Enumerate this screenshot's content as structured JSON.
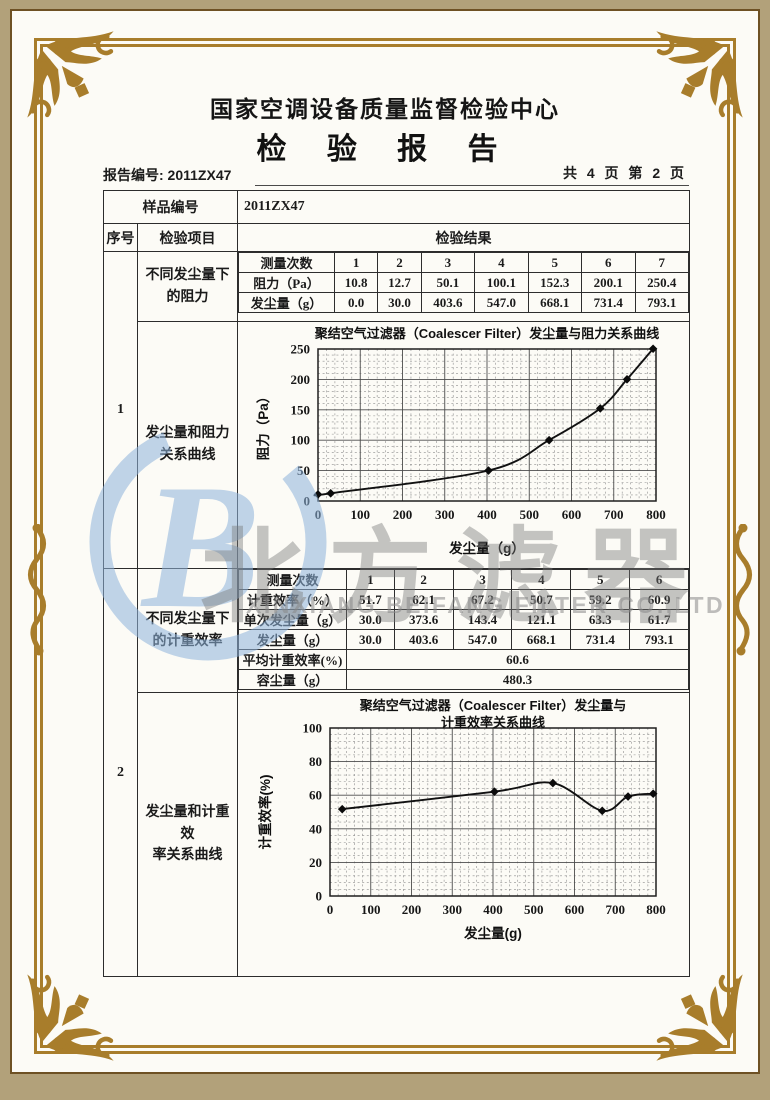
{
  "colors": {
    "frame_gold": "#a87d2b",
    "outer_band": "#b2a17a",
    "paper": "#fcfbf6",
    "table_line": "#2c2c2c",
    "watermark_blue": "#8fb4dc",
    "watermark_gray": "#8a8a8a"
  },
  "header": {
    "org": "国家空调设备质量监督检验中心",
    "title": "检 验 报 告"
  },
  "meta": {
    "report_no": "报告编号: 2011ZX47",
    "pages": "共 4 页 第 2 页"
  },
  "table": {
    "sample_label": "样品编号",
    "sample_value": "2011ZX47",
    "seq_header": "序号",
    "item_header": "检验项目",
    "result_header": "检验结果",
    "section1": {
      "seq": "1",
      "item_resistance": "不同发尘量下\n的阻力",
      "item_chart": "发尘量和阻力\n关系曲线",
      "t": {
        "header_label": "测量次数",
        "cols": [
          "1",
          "2",
          "3",
          "4",
          "5",
          "6",
          "7"
        ],
        "r_label": "阻力（Pa）",
        "r": [
          "10.8",
          "12.7",
          "50.1",
          "100.1",
          "152.3",
          "200.1",
          "250.4"
        ],
        "d_label": "发尘量（g）",
        "d": [
          "0.0",
          "30.0",
          "403.6",
          "547.0",
          "668.1",
          "731.4",
          "793.1"
        ]
      }
    },
    "section2": {
      "seq": "2",
      "item_eff": "不同发尘量下\n的计重效率",
      "item_chart": "发尘量和计重效\n率关系曲线",
      "t": {
        "header_label": "测量次数",
        "cols": [
          "1",
          "2",
          "3",
          "4",
          "5",
          "6"
        ],
        "e_label": "计重效率（%）",
        "e": [
          "51.7",
          "62.1",
          "67.2",
          "50.7",
          "59.2",
          "60.9"
        ],
        "s_label": "单次发尘量（g）",
        "s": [
          "30.0",
          "373.6",
          "143.4",
          "121.1",
          "63.3",
          "61.7"
        ],
        "d_label": "发尘量（g）",
        "d": [
          "30.0",
          "403.6",
          "547.0",
          "668.1",
          "731.4",
          "793.1"
        ],
        "avg_label": "平均计重效率(%)",
        "avg": "60.6",
        "cap_label": "容尘量（g）",
        "cap": "480.3"
      }
    }
  },
  "watermark": {
    "cjk": "北方滤器",
    "latin": "XINXIANG BEIFANG FILTER CO.,LTD"
  },
  "chart_data": [
    {
      "type": "line",
      "title": "聚结空气过滤器（Coalescer Filter）发尘量与阻力关系曲线",
      "xlabel": "发尘量（g）",
      "ylabel": "阻力（Pa）",
      "xlim": [
        0,
        800
      ],
      "ylim": [
        0,
        250
      ],
      "xticks": [
        0,
        100,
        200,
        300,
        400,
        500,
        600,
        700,
        800
      ],
      "yticks": [
        0,
        50,
        100,
        150,
        200,
        250
      ],
      "grid": true,
      "legend": "none",
      "x": [
        0,
        30,
        403.6,
        547.0,
        668.1,
        731.4,
        793.1
      ],
      "y": [
        10.8,
        12.7,
        50.1,
        100.1,
        152.3,
        200.1,
        250.4
      ]
    },
    {
      "type": "line",
      "title": "聚结空气过滤器（Coalescer Filter）发尘量与\n计重效率关系曲线",
      "xlabel": "发尘量(g)",
      "ylabel": "计重效率(%)",
      "xlim": [
        0,
        800
      ],
      "ylim": [
        0,
        100
      ],
      "xticks": [
        0,
        100,
        200,
        300,
        400,
        500,
        600,
        700,
        800
      ],
      "yticks": [
        0,
        20,
        40,
        60,
        80,
        100
      ],
      "grid": true,
      "legend": "none",
      "x": [
        30,
        403.6,
        547.0,
        668.1,
        731.4,
        793.1
      ],
      "y": [
        51.7,
        62.1,
        67.2,
        50.7,
        59.2,
        60.9
      ]
    }
  ]
}
